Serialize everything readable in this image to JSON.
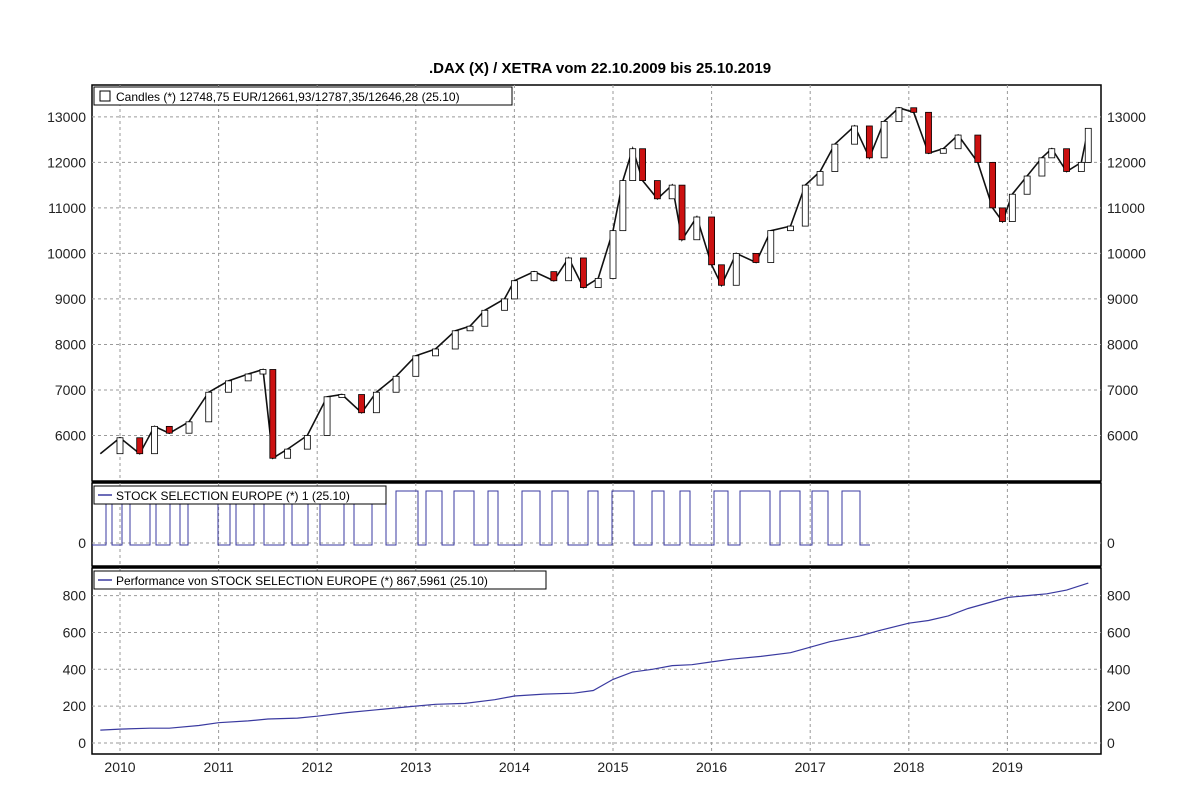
{
  "chart_data": {
    "type": "line",
    "title": ".DAX (X) / XETRA vom 22.10.2009 bis 25.10.2019",
    "x_ticks": [
      "2010",
      "2011",
      "2012",
      "2013",
      "2014",
      "2015",
      "2016",
      "2017",
      "2018",
      "2019"
    ],
    "panels": [
      {
        "name": "price",
        "legend": "Candles (*) 12748,75 EUR/12661,93/12787,35/12646,28 (25.10)",
        "y_ticks": [
          "13000",
          "12000",
          "11000",
          "10000",
          "9000",
          "8000",
          "7000",
          "6000"
        ],
        "ylim": [
          5000,
          13700
        ],
        "series": [
          {
            "x": [
              2009.8,
              2010.0,
              2010.2,
              2010.35,
              2010.5,
              2010.7,
              2010.9,
              2011.1,
              2011.3,
              2011.45,
              2011.55,
              2011.7,
              2011.9,
              2012.1,
              2012.25,
              2012.45,
              2012.6,
              2012.8,
              2013.0,
              2013.2,
              2013.4,
              2013.55,
              2013.7,
              2013.9,
              2014.0,
              2014.2,
              2014.4,
              2014.55,
              2014.7,
              2014.85,
              2015.0,
              2015.1,
              2015.2,
              2015.3,
              2015.45,
              2015.6,
              2015.7,
              2015.85,
              2016.0,
              2016.1,
              2016.25,
              2016.45,
              2016.6,
              2016.8,
              2016.95,
              2017.1,
              2017.25,
              2017.45,
              2017.6,
              2017.75,
              2017.9,
              2018.05,
              2018.2,
              2018.35,
              2018.5,
              2018.7,
              2018.85,
              2018.95,
              2019.05,
              2019.2,
              2019.35,
              2019.45,
              2019.6,
              2019.75,
              2019.82
            ],
            "values": [
              5600,
              5950,
              5600,
              6200,
              6050,
              6300,
              6950,
              7200,
              7350,
              7450,
              5500,
              5700,
              6000,
              6850,
              6900,
              6500,
              6950,
              7300,
              7750,
              7900,
              8300,
              8400,
              8750,
              9000,
              9400,
              9600,
              9400,
              9900,
              9250,
              9450,
              10500,
              11600,
              12300,
              11600,
              11200,
              11500,
              10300,
              10800,
              9750,
              9300,
              10000,
              9800,
              10500,
              10600,
              11500,
              11800,
              12400,
              12800,
              12100,
              12900,
              13200,
              13100,
              12200,
              12300,
              12600,
              12000,
              11000,
              10700,
              11300,
              11700,
              12100,
              12300,
              11800,
              12000,
              12748
            ]
          }
        ]
      },
      {
        "name": "signal",
        "legend": "STOCK SELECTION EUROPE (*) 1 (25.10)",
        "y_ticks": [
          "0"
        ],
        "ylim": [
          -0.5,
          1.3
        ]
      },
      {
        "name": "performance",
        "legend": "Performance von STOCK SELECTION EUROPE (*) 867,5961 (25.10)",
        "y_ticks": [
          "800",
          "600",
          "400",
          "200",
          "0"
        ],
        "ylim": [
          -60,
          950
        ],
        "series": [
          {
            "x": [
              2009.8,
              2010.0,
              2010.3,
              2010.5,
              2010.8,
              2011.0,
              2011.3,
              2011.5,
              2011.8,
              2012.0,
              2012.3,
              2012.6,
              2012.9,
              2013.2,
              2013.5,
              2013.8,
              2014.0,
              2014.3,
              2014.6,
              2014.8,
              2015.0,
              2015.2,
              2015.4,
              2015.6,
              2015.8,
              2016.0,
              2016.2,
              2016.5,
              2016.8,
              2017.0,
              2017.2,
              2017.5,
              2017.7,
              2018.0,
              2018.2,
              2018.4,
              2018.6,
              2018.8,
              2019.0,
              2019.2,
              2019.4,
              2019.6,
              2019.82
            ],
            "values": [
              70,
              75,
              80,
              80,
              95,
              110,
              120,
              130,
              135,
              145,
              165,
              180,
              195,
              210,
              215,
              235,
              255,
              265,
              270,
              285,
              345,
              385,
              400,
              420,
              425,
              440,
              455,
              470,
              490,
              520,
              550,
              580,
              610,
              650,
              665,
              690,
              730,
              760,
              790,
              800,
              810,
              830,
              868
            ]
          }
        ]
      }
    ]
  }
}
